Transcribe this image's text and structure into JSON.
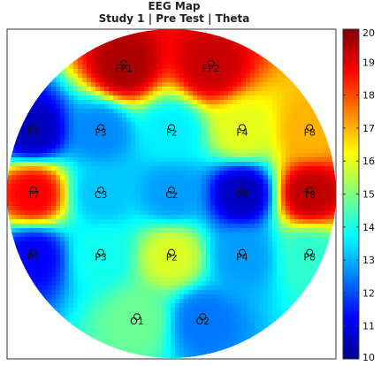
{
  "chart_data": {
    "type": "heatmap",
    "title": "EEG Map",
    "subtitle": "Study 1 | Pre Test | Theta",
    "colorbar": {
      "min": 10,
      "max": 20,
      "ticks": [
        10,
        11,
        12,
        13,
        14,
        15,
        16,
        17,
        18,
        19,
        20
      ],
      "colormap": "jet"
    },
    "electrodes": [
      {
        "name": "FP1",
        "x": -0.29,
        "y": 0.77,
        "value": 19.6
      },
      {
        "name": "FP2",
        "x": 0.24,
        "y": 0.77,
        "value": 19.3
      },
      {
        "name": "F7",
        "x": -0.84,
        "y": 0.38,
        "value": 10.6
      },
      {
        "name": "F3",
        "x": -0.43,
        "y": 0.38,
        "value": 12.6
      },
      {
        "name": "Fz",
        "x": 0.0,
        "y": 0.38,
        "value": 13.6
      },
      {
        "name": "F4",
        "x": 0.43,
        "y": 0.38,
        "value": 16.0
      },
      {
        "name": "F8",
        "x": 0.84,
        "y": 0.38,
        "value": 17.0
      },
      {
        "name": "T7",
        "x": -0.84,
        "y": 0.0,
        "value": 18.8
      },
      {
        "name": "C3",
        "x": -0.43,
        "y": 0.0,
        "value": 13.2
      },
      {
        "name": "Cz",
        "x": 0.0,
        "y": 0.0,
        "value": 12.8
      },
      {
        "name": "C4",
        "x": 0.43,
        "y": 0.0,
        "value": 10.6
      },
      {
        "name": "T8",
        "x": 0.84,
        "y": 0.0,
        "value": 19.4
      },
      {
        "name": "P7",
        "x": -0.84,
        "y": -0.38,
        "value": 11.2
      },
      {
        "name": "P3",
        "x": -0.43,
        "y": -0.38,
        "value": 13.9
      },
      {
        "name": "Pz",
        "x": 0.0,
        "y": -0.38,
        "value": 15.9
      },
      {
        "name": "P4",
        "x": 0.43,
        "y": -0.38,
        "value": 12.8
      },
      {
        "name": "P8",
        "x": 0.84,
        "y": -0.38,
        "value": 14.2
      },
      {
        "name": "O1",
        "x": -0.21,
        "y": -0.77,
        "value": 14.8
      },
      {
        "name": "O2",
        "x": 0.19,
        "y": -0.77,
        "value": 12.4
      }
    ]
  }
}
